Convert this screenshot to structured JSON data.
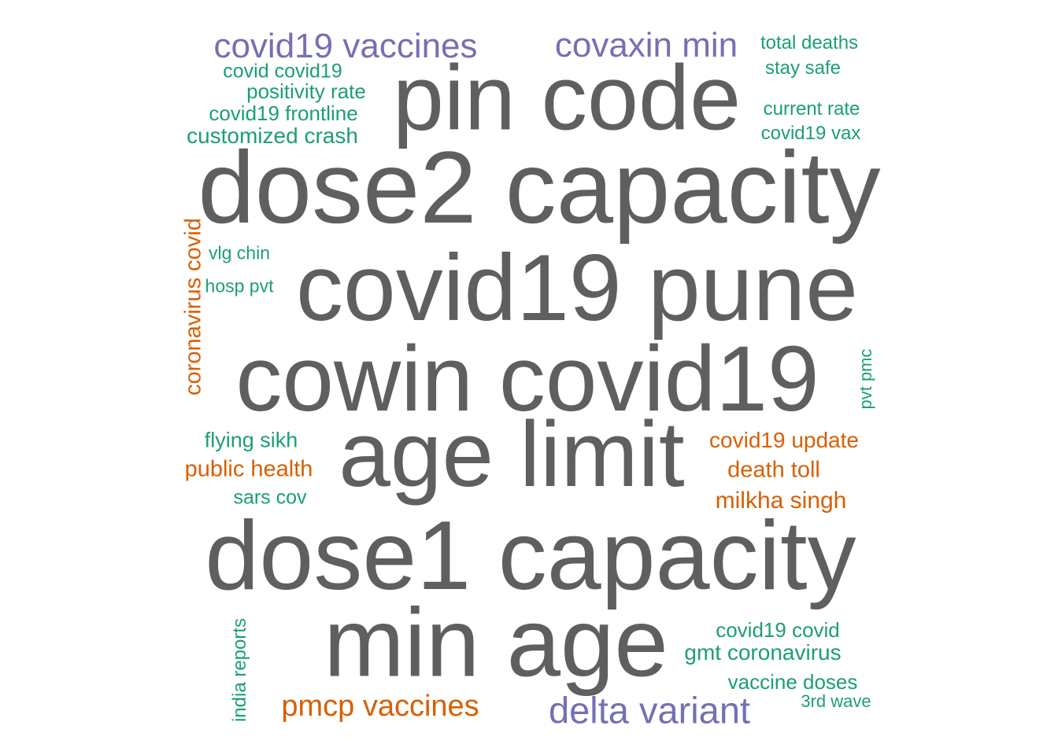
{
  "colors": {
    "gray": "#5f5f5f",
    "purple": "#7570b3",
    "green": "#1b9e77",
    "orange": "#d95f02"
  },
  "words": [
    {
      "text": "pin code",
      "color": "gray",
      "vertical": false
    },
    {
      "text": "dose2 capacity",
      "color": "gray",
      "vertical": false
    },
    {
      "text": "covid19 pune",
      "color": "gray",
      "vertical": false
    },
    {
      "text": "cowin covid19",
      "color": "gray",
      "vertical": false
    },
    {
      "text": "age limit",
      "color": "gray",
      "vertical": false
    },
    {
      "text": "dose1 capacity",
      "color": "gray",
      "vertical": false
    },
    {
      "text": "min age",
      "color": "gray",
      "vertical": false
    },
    {
      "text": "covid19 vaccines",
      "color": "purple",
      "vertical": false
    },
    {
      "text": "covaxin min",
      "color": "purple",
      "vertical": false
    },
    {
      "text": "delta variant",
      "color": "purple",
      "vertical": false
    },
    {
      "text": "pmcp vaccines",
      "color": "orange",
      "vertical": false
    },
    {
      "text": "coronavirus covid",
      "color": "orange",
      "vertical": true
    },
    {
      "text": "covid19 update",
      "color": "orange",
      "vertical": false
    },
    {
      "text": "death toll",
      "color": "orange",
      "vertical": false
    },
    {
      "text": "milkha singh",
      "color": "orange",
      "vertical": false
    },
    {
      "text": "public health",
      "color": "orange",
      "vertical": false
    },
    {
      "text": "total deaths",
      "color": "green",
      "vertical": false
    },
    {
      "text": "stay safe",
      "color": "green",
      "vertical": false
    },
    {
      "text": "current rate",
      "color": "green",
      "vertical": false
    },
    {
      "text": "covid19 vax",
      "color": "green",
      "vertical": false
    },
    {
      "text": "covid covid19",
      "color": "green",
      "vertical": false
    },
    {
      "text": "positivity rate",
      "color": "green",
      "vertical": false
    },
    {
      "text": "covid19 frontline",
      "color": "green",
      "vertical": false
    },
    {
      "text": "customized crash",
      "color": "green",
      "vertical": false
    },
    {
      "text": "vlg chin",
      "color": "green",
      "vertical": false
    },
    {
      "text": "hosp pvt",
      "color": "green",
      "vertical": false
    },
    {
      "text": "pvt pmc",
      "color": "green",
      "vertical": true
    },
    {
      "text": "flying sikh",
      "color": "green",
      "vertical": false
    },
    {
      "text": "sars cov",
      "color": "green",
      "vertical": false
    },
    {
      "text": "india reports",
      "color": "green",
      "vertical": true
    },
    {
      "text": "covid19 covid",
      "color": "green",
      "vertical": false
    },
    {
      "text": "gmt coronavirus",
      "color": "green",
      "vertical": false
    },
    {
      "text": "vaccine doses",
      "color": "green",
      "vertical": false
    },
    {
      "text": "3rd wave",
      "color": "green",
      "vertical": false
    }
  ]
}
